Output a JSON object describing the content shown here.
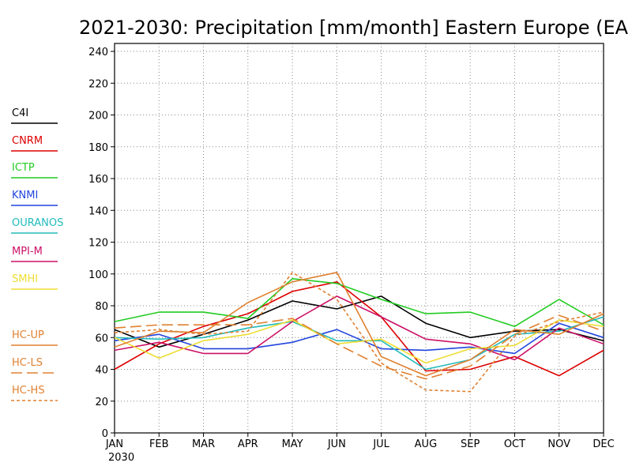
{
  "chart_data": {
    "type": "line",
    "title": "2021-2030: Precipitation [mm/month] Eastern Europe (EA",
    "xlabel": "",
    "ylabel": "",
    "categories": [
      "JAN",
      "FEB",
      "MAR",
      "APR",
      "MAY",
      "JUN",
      "JUL",
      "AUG",
      "SEP",
      "OCT",
      "NOV",
      "DEC"
    ],
    "year_label": "2030",
    "ylim": [
      0,
      245
    ],
    "yticks": [
      0,
      20,
      40,
      60,
      80,
      100,
      120,
      140,
      160,
      180,
      200,
      220,
      240
    ],
    "grid": true,
    "legend_position": "left",
    "series": [
      {
        "name": "C4I",
        "color": "#000000",
        "dash": "solid",
        "values": [
          65,
          54,
          62,
          71,
          83,
          78,
          86,
          69,
          60,
          64,
          65,
          58
        ]
      },
      {
        "name": "CNRM",
        "color": "#dd0000",
        "dash": "solid",
        "values": [
          40,
          56,
          67,
          75,
          89,
          95,
          73,
          39,
          40,
          48,
          36,
          52
        ]
      },
      {
        "name": "ICTP",
        "color": "#22cc22",
        "dash": "solid",
        "values": [
          70,
          76,
          76,
          72,
          97,
          94,
          84,
          75,
          76,
          67,
          84,
          68
        ]
      },
      {
        "name": "KNMI",
        "color": "#2244dd",
        "dash": "solid",
        "values": [
          58,
          62,
          53,
          53,
          57,
          65,
          53,
          52,
          54,
          50,
          69,
          60
        ]
      },
      {
        "name": "OURANOS",
        "color": "#22bbbb",
        "dash": "solid",
        "values": [
          60,
          59,
          60,
          66,
          70,
          58,
          58,
          40,
          46,
          62,
          64,
          73
        ]
      },
      {
        "name": "MPI-M",
        "color": "#cc1166",
        "dash": "solid",
        "values": [
          52,
          57,
          50,
          50,
          70,
          86,
          73,
          59,
          56,
          46,
          66,
          56
        ]
      },
      {
        "name": "SMHI",
        "color": "#eedd33",
        "dash": "solid",
        "values": [
          60,
          47,
          58,
          62,
          71,
          56,
          59,
          44,
          53,
          55,
          71,
          67
        ]
      },
      {
        "name": "HC-UP",
        "color": "#e08030",
        "dash": "solid",
        "values": [
          54,
          64,
          63,
          82,
          95,
          101,
          48,
          36,
          46,
          65,
          62,
          75
        ]
      },
      {
        "name": "HC-LS",
        "color": "#e08030",
        "dash": "long",
        "values": [
          66,
          68,
          68,
          68,
          72,
          56,
          42,
          34,
          42,
          62,
          74,
          64
        ]
      },
      {
        "name": "HC-HS",
        "color": "#e08030",
        "dash": "short",
        "values": [
          63,
          65,
          62,
          64,
          101,
          84,
          44,
          27,
          26,
          61,
          70,
          76
        ]
      }
    ]
  }
}
